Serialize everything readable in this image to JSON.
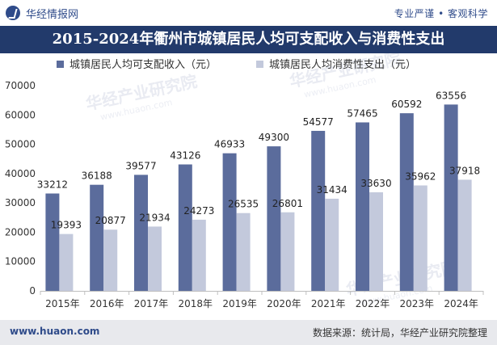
{
  "header": {
    "brand": "华经情报网",
    "slogan": "专业严谨 • 客观科学"
  },
  "title": "2015-2024年衢州市城镇居民人均可支配收入与消费性支出",
  "footer": {
    "site": "www.huaon.com",
    "source": "数据来源：统计局，华经产业研究院整理"
  },
  "watermarks": [
    "华经产业研究院",
    "www.huaon.com"
  ],
  "chart_data": {
    "type": "bar",
    "categories": [
      "2015年",
      "2016年",
      "2017年",
      "2018年",
      "2019年",
      "2020年",
      "2021年",
      "2022年",
      "2023年",
      "2024年"
    ],
    "series": [
      {
        "name": "城镇居民人均可支配收入（元）",
        "values": [
          33212,
          36188,
          39577,
          43126,
          46933,
          49300,
          54577,
          57465,
          60592,
          63556
        ],
        "color": "#5b6c9c"
      },
      {
        "name": "城镇居民人均消费性支出（元）",
        "values": [
          19393,
          20877,
          21934,
          24273,
          26535,
          26801,
          31434,
          33630,
          35962,
          37918
        ],
        "color": "#c3c9dc"
      }
    ],
    "ylim": [
      0,
      70000
    ],
    "yticks": [
      0,
      10000,
      20000,
      30000,
      40000,
      50000,
      60000,
      70000
    ],
    "grid": false,
    "legend_position": "top-left"
  }
}
